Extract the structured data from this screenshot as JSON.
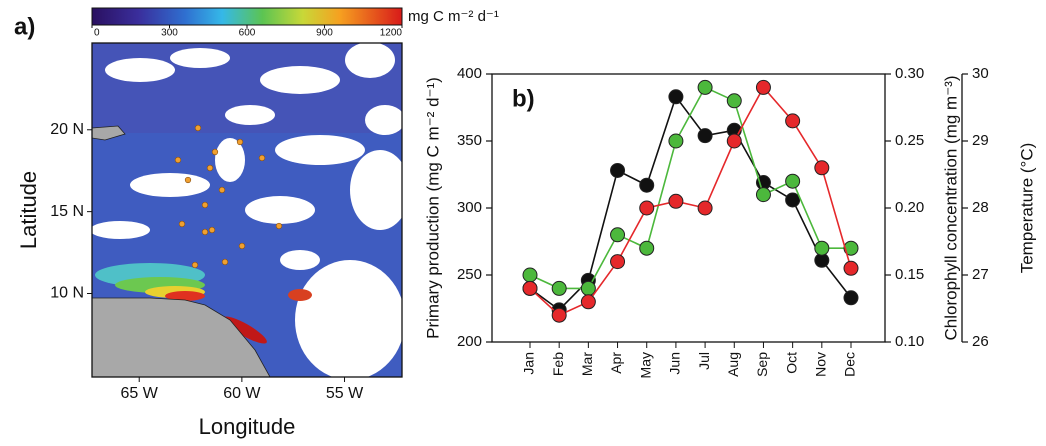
{
  "chart_data": [
    {
      "type": "map",
      "label": "a)",
      "colorbar_label": "mg C m⁻² d⁻¹",
      "colorbar_lim": [
        0,
        1200
      ],
      "colorbar_ticks": [
        0,
        300,
        600,
        900,
        1200
      ],
      "xlabel": "Longitude",
      "ylabel": "Latitude",
      "xlim": [
        -67.3,
        -52.2
      ],
      "ylim": [
        4.9,
        25.3
      ],
      "xticks": [
        {
          "value": -65,
          "label": "65 W"
        },
        {
          "value": -60,
          "label": "60 W"
        },
        {
          "value": -55,
          "label": "55 W"
        }
      ],
      "yticks": [
        {
          "value": 10,
          "label": "10 N"
        },
        {
          "value": 15,
          "label": "15 N"
        },
        {
          "value": 20,
          "label": "20 N"
        }
      ]
    },
    {
      "type": "line",
      "label": "b)",
      "categories": [
        "Jan",
        "Feb",
        "Mar",
        "Apr",
        "May",
        "Jun",
        "Jul",
        "Aug",
        "Sep",
        "Oct",
        "Nov",
        "Dec"
      ],
      "ylabel": "Primary production (mg C m⁻² d⁻¹)",
      "y2label": "Chlorophyll concentration (mg m⁻³)",
      "y3label": "Temperature (°C)",
      "ylim": [
        200,
        400
      ],
      "yticks": [
        200,
        250,
        300,
        350,
        400
      ],
      "y2lim": [
        0.1,
        0.3
      ],
      "y2ticks": [
        {
          "value": 0.1,
          "label": "0.10"
        },
        {
          "value": 0.15,
          "label": "0.15"
        },
        {
          "value": 0.2,
          "label": "0.20"
        },
        {
          "value": 0.25,
          "label": "0.25"
        },
        {
          "value": 0.3,
          "label": "0.30"
        }
      ],
      "y3lim": [
        26,
        30
      ],
      "y3ticks": [
        26,
        27,
        28,
        29,
        30
      ],
      "y2color": "#4cb83c",
      "y3color": "#e5282b",
      "series": [
        {
          "color": "#111111",
          "values": [
            240,
            224,
            246,
            328,
            317,
            383,
            354,
            358,
            319,
            306,
            261,
            233
          ]
        },
        {
          "color": "#4cb83c",
          "axis": "y2",
          "values": [
            0.15,
            0.14,
            0.14,
            0.18,
            0.17,
            0.25,
            0.29,
            0.28,
            0.21,
            0.22,
            0.17,
            0.17
          ]
        },
        {
          "color": "#e5282b",
          "axis": "y3",
          "values": [
            26.8,
            26.4,
            26.6,
            27.2,
            28.0,
            28.1,
            28.0,
            29.0,
            29.8,
            29.3,
            28.6,
            27.1
          ]
        }
      ]
    }
  ]
}
